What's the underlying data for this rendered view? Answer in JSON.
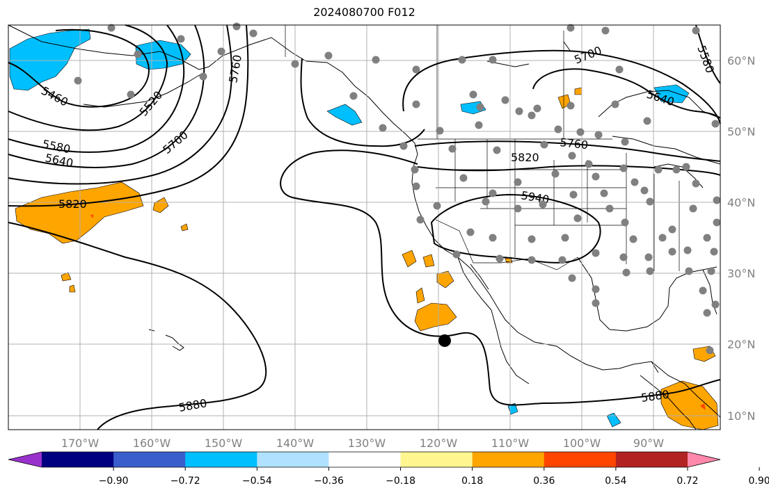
{
  "title": "2024080700 F012",
  "colors": {
    "land_line": "#000000",
    "grid": "#b0b0b0",
    "contour": "#000000",
    "station": "#808080",
    "storm_center": "#000000"
  },
  "map": {
    "projection": "PlateCarree",
    "lon_range": [
      -180,
      -80
    ],
    "lat_range": [
      8,
      65
    ]
  },
  "axes": {
    "lon_ticks": [
      "170°W",
      "160°W",
      "150°W",
      "140°W",
      "130°W",
      "120°W",
      "110°W",
      "100°W",
      "90°W"
    ],
    "lat_ticks": [
      "60°N",
      "50°N",
      "40°N",
      "30°N",
      "20°N",
      "10°N"
    ]
  },
  "colorbar": {
    "colors": [
      "#9932cc",
      "#000080",
      "#3a5fcd",
      "#00bfff",
      "#b0e2ff",
      "#ffffff",
      "#fff68f",
      "#ffa500",
      "#ff4500",
      "#b22222",
      "#ff88aa"
    ],
    "ticks": [
      "−0.90",
      "−0.72",
      "−0.54",
      "−0.36",
      "−0.18",
      "0.18",
      "0.36",
      "0.54",
      "0.72",
      "0.90"
    ]
  },
  "contour_labels": [
    "5460",
    "5520",
    "5580",
    "5640",
    "5700",
    "5760",
    "5820",
    "5880",
    "5940",
    "5580",
    "5640",
    "5700",
    "5760",
    "5820",
    "5880"
  ],
  "storm_center": {
    "lon": -118.5,
    "lat": 20.5
  },
  "icons": {
    "storm": "tropical-cyclone-dot-icon",
    "station": "station-dot-icon"
  }
}
